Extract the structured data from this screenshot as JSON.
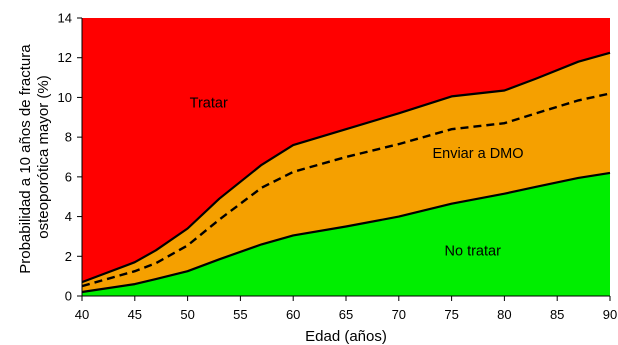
{
  "chart_data": {
    "type": "area",
    "title": "",
    "xlabel": "Edad (años)",
    "ylabel_lines": [
      "Probabilidad a 10 años de fractura",
      "osteoporótica mayor (%)"
    ],
    "xlim": [
      40,
      90
    ],
    "ylim": [
      0,
      14
    ],
    "xticks": [
      40,
      45,
      50,
      55,
      60,
      65,
      70,
      75,
      80,
      85,
      90
    ],
    "yticks": [
      0,
      2,
      4,
      6,
      8,
      10,
      12,
      14
    ],
    "grid": false,
    "x": [
      40,
      45,
      47,
      50,
      53,
      57,
      60,
      65,
      70,
      75,
      80,
      83,
      87,
      90
    ],
    "series": [
      {
        "name": "No tratar",
        "role": "lower threshold",
        "color": "#00ee00",
        "values": [
          0.2,
          0.6,
          0.85,
          1.25,
          1.85,
          2.6,
          3.05,
          3.5,
          4.0,
          4.65,
          5.15,
          5.5,
          5.95,
          6.2
        ]
      },
      {
        "name": "Enviar a DMO",
        "role": "upper threshold",
        "color": "#f5a000",
        "values": [
          0.7,
          1.7,
          2.3,
          3.4,
          4.9,
          6.6,
          7.6,
          8.4,
          9.2,
          10.05,
          10.35,
          10.95,
          11.8,
          12.25
        ]
      },
      {
        "name": "",
        "role": "intervention threshold (dashed)",
        "color": "#000000",
        "values": [
          0.5,
          1.25,
          1.65,
          2.55,
          3.85,
          5.45,
          6.25,
          7.0,
          7.65,
          8.4,
          8.7,
          9.2,
          9.85,
          10.2
        ]
      }
    ],
    "regions": [
      {
        "label": "Tratar",
        "color": "#ff0000",
        "anchor_x": 52,
        "anchor_y": 9.5
      },
      {
        "label": "Enviar a DMO",
        "color": "#f5a000",
        "anchor_x": 77.5,
        "anchor_y": 6.95
      },
      {
        "label": "No tratar",
        "color": "#00ee00",
        "anchor_x": 77,
        "anchor_y": 2.05
      }
    ]
  }
}
